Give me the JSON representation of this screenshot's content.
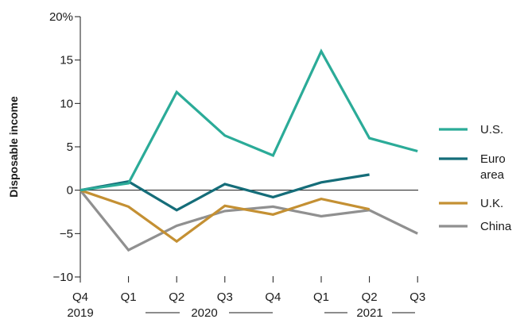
{
  "chart_data": {
    "type": "line",
    "ylabel": "Disposable income",
    "y_unit_suffix": "%",
    "ylim": [
      -10,
      20
    ],
    "yticks": [
      -10,
      -5,
      0,
      5,
      10,
      15,
      20
    ],
    "ytick_labels": [
      "−10",
      "−5",
      "0",
      "5",
      "10",
      "15",
      "20%"
    ],
    "x": [
      "Q4 2019",
      "Q1 2020",
      "Q2 2020",
      "Q3 2020",
      "Q4 2020",
      "Q1 2021",
      "Q2 2021",
      "Q3 2021"
    ],
    "x_tick_labels": [
      "Q4",
      "Q1",
      "Q2",
      "Q3",
      "Q4",
      "Q1",
      "Q2",
      "Q3"
    ],
    "year_labels": [
      "2019",
      "2020",
      "2021"
    ],
    "grid": false,
    "legend_position": "right",
    "series": [
      {
        "name": "U.S.",
        "color": "#2bab98",
        "values": [
          0,
          0.8,
          11.3,
          6.3,
          4.0,
          16.0,
          6.0,
          4.5
        ]
      },
      {
        "name": "Euro area",
        "name_lines": [
          "Euro",
          "area"
        ],
        "color": "#156d79",
        "values": [
          0,
          1.0,
          -2.3,
          0.7,
          -0.8,
          0.9,
          1.8,
          null
        ]
      },
      {
        "name": "U.K.",
        "color": "#c49033",
        "values": [
          0,
          -1.9,
          -5.9,
          -1.8,
          -2.8,
          -1.0,
          -2.2,
          null
        ]
      },
      {
        "name": "China",
        "color": "#909090",
        "values": [
          0,
          -6.9,
          -4.1,
          -2.4,
          -1.9,
          -3.0,
          -2.3,
          -5.0
        ]
      }
    ]
  }
}
